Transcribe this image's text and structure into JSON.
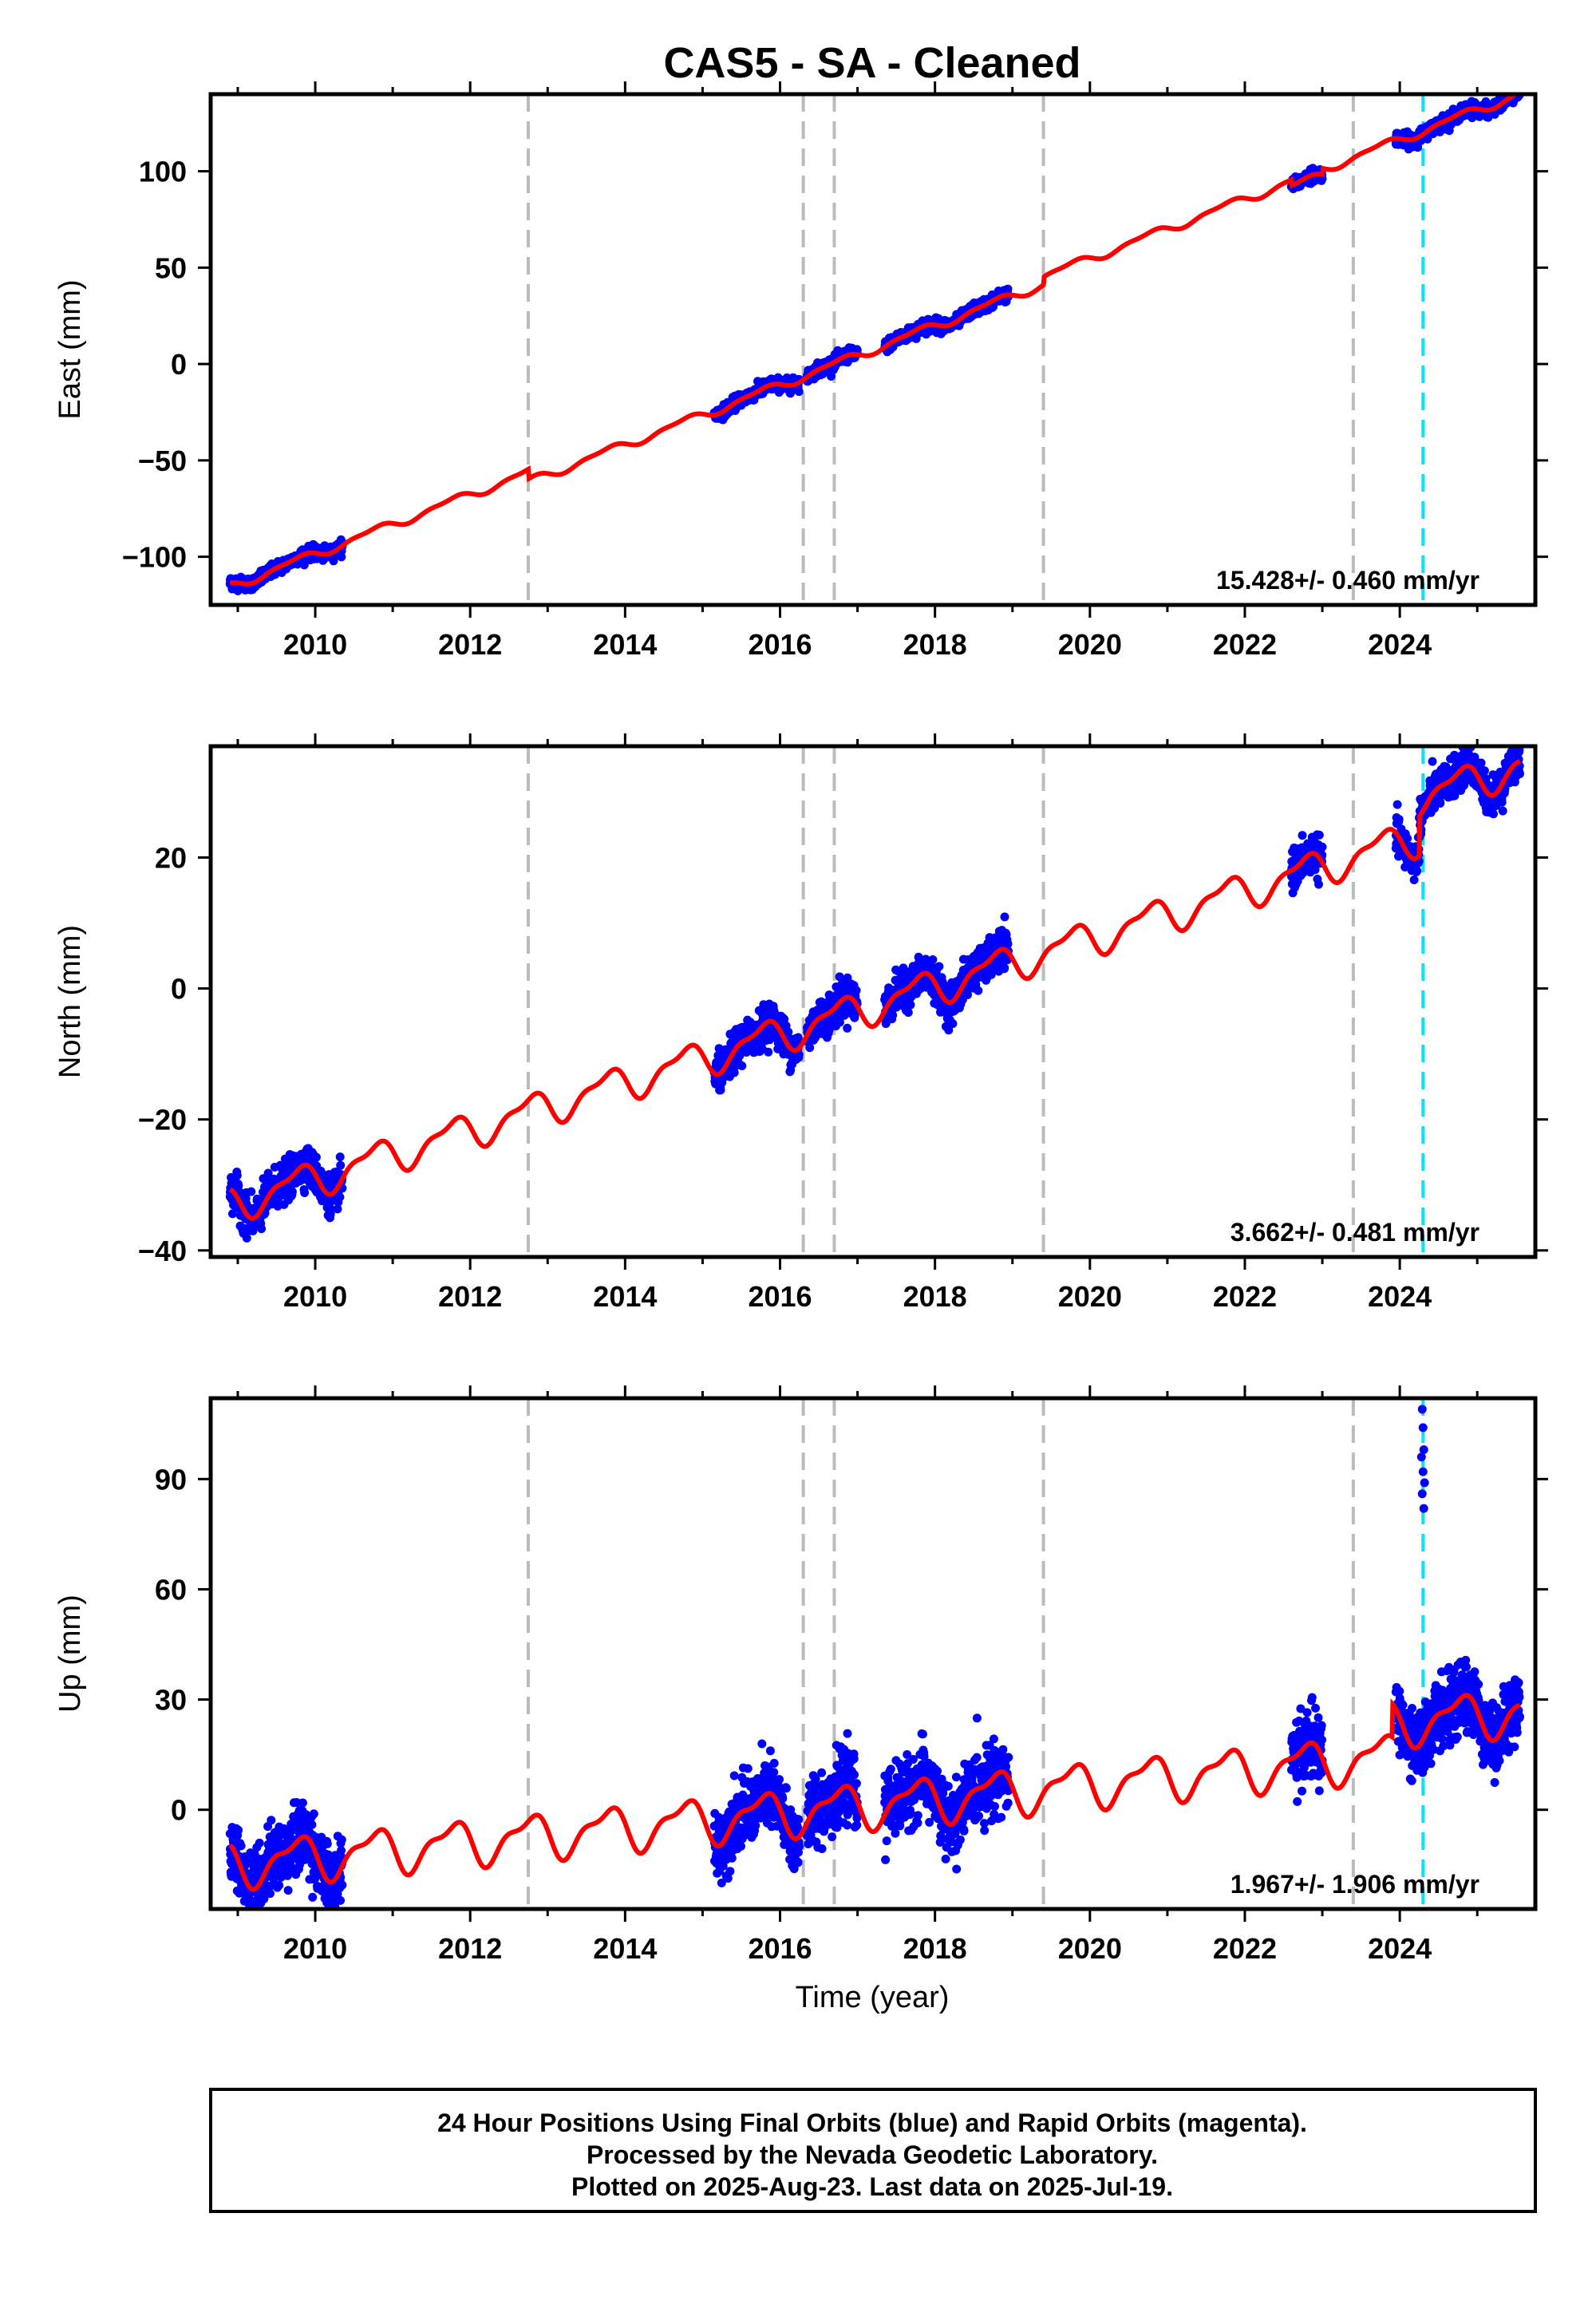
{
  "title": "CAS5  - SA - Cleaned",
  "xlabel": "Time (year)",
  "footer": {
    "line1": "24 Hour Positions Using Final Orbits (blue) and Rapid Orbits (magenta).",
    "line2": "Processed by the Nevada Geodetic Laboratory.",
    "line3": "Plotted on 2025-Aug-23. Last data on 2025-Jul-19."
  },
  "colors": {
    "data_points": "#0000ff",
    "model_fit": "#ff0000",
    "equipment_change_lines": "#bbbbbb",
    "earthquake_line": "#00e5ff"
  },
  "chart_data": [
    {
      "type": "scatter",
      "panel": "east",
      "ylabel": "East (mm)",
      "ylim": [
        -125,
        140
      ],
      "yticks": [
        -100,
        -50,
        0,
        50,
        100
      ],
      "ytick_labels": [
        "−100",
        "−50",
        "0",
        "50",
        "100"
      ],
      "xlim": [
        2008.65,
        2025.75
      ],
      "xticks": [
        2010,
        2012,
        2014,
        2016,
        2018,
        2020,
        2022,
        2024
      ],
      "xtick_labels": [
        "2010",
        "2012",
        "2014",
        "2016",
        "2018",
        "2020",
        "2022",
        "2024"
      ],
      "rate_label": "15.428+/- 0.460 mm/yr",
      "rate": 15.428,
      "intercept_2016": -6,
      "annual_amplitude": 2.0,
      "point_noise": 1.6,
      "steps": [
        {
          "x": 2012.75,
          "dy": -5
        },
        {
          "x": 2019.4,
          "dy": 4
        }
      ],
      "offsets": [
        {
          "x0": 2022.6,
          "x1": 2023.0,
          "dy": -3
        }
      ],
      "data_segments": [
        [
          2008.9,
          2010.35
        ],
        [
          2015.15,
          2016.25
        ],
        [
          2016.35,
          2017.0
        ],
        [
          2017.35,
          2018.95
        ],
        [
          2022.6,
          2023.0
        ],
        [
          2023.95,
          2025.55
        ]
      ],
      "equipment_changes": [
        2012.75,
        2016.3,
        2016.7,
        2019.4,
        2023.4
      ],
      "earthquakes": [
        2024.3
      ],
      "outliers": []
    },
    {
      "type": "scatter",
      "panel": "north",
      "ylabel": "North (mm)",
      "ylim": [
        -41,
        37
      ],
      "yticks": [
        -40,
        -20,
        0,
        20
      ],
      "ytick_labels": [
        "−40",
        "−20",
        "0",
        "20"
      ],
      "xlim": [
        2008.65,
        2025.75
      ],
      "xticks": [
        2010,
        2012,
        2014,
        2016,
        2018,
        2020,
        2022,
        2024
      ],
      "xtick_labels": [
        "2010",
        "2012",
        "2014",
        "2016",
        "2018",
        "2020",
        "2022",
        "2024"
      ],
      "rate_label": "3.662+/- 0.481 mm/yr",
      "rate": 3.662,
      "intercept_2016": -7,
      "annual_amplitude": 2.4,
      "point_noise": 1.4,
      "steps": [
        {
          "x": 2024.25,
          "dy": 6
        }
      ],
      "offsets": [],
      "data_segments": [
        [
          2008.9,
          2010.35
        ],
        [
          2015.15,
          2016.25
        ],
        [
          2016.35,
          2017.0
        ],
        [
          2017.35,
          2018.95
        ],
        [
          2022.6,
          2023.0
        ],
        [
          2023.95,
          2025.55
        ]
      ],
      "equipment_changes": [
        2012.75,
        2016.3,
        2016.7,
        2019.4,
        2023.4
      ],
      "earthquakes": [
        2024.3
      ],
      "outliers": []
    },
    {
      "type": "scatter",
      "panel": "up",
      "ylabel": "Up (mm)",
      "ylim": [
        -27,
        112
      ],
      "yticks": [
        0,
        30,
        60,
        90
      ],
      "ytick_labels": [
        "0",
        "30",
        "60",
        "90"
      ],
      "xlim": [
        2008.65,
        2025.75
      ],
      "xticks": [
        2010,
        2012,
        2014,
        2016,
        2018,
        2020,
        2022,
        2024
      ],
      "xtick_labels": [
        "2010",
        "2012",
        "2014",
        "2016",
        "2018",
        "2020",
        "2022",
        "2024"
      ],
      "rate_label": "1.967+/- 1.906 mm/yr",
      "rate": 1.967,
      "intercept_2016": -1,
      "annual_amplitude": 5.5,
      "point_noise": 4.5,
      "steps": [
        {
          "x": 2023.9,
          "dy": 9
        }
      ],
      "offsets": [],
      "data_segments": [
        [
          2008.9,
          2010.35
        ],
        [
          2015.15,
          2016.25
        ],
        [
          2016.35,
          2017.0
        ],
        [
          2017.35,
          2018.95
        ],
        [
          2022.6,
          2023.0
        ],
        [
          2023.95,
          2025.55
        ]
      ],
      "equipment_changes": [
        2012.75,
        2016.3,
        2016.7,
        2019.4,
        2023.4
      ],
      "earthquakes": [
        2024.3
      ],
      "outliers": [
        {
          "x": 2024.29,
          "y": 109
        },
        {
          "x": 2024.3,
          "y": 104
        },
        {
          "x": 2024.31,
          "y": 98
        },
        {
          "x": 2024.28,
          "y": 96
        },
        {
          "x": 2024.3,
          "y": 92
        },
        {
          "x": 2024.32,
          "y": 89
        },
        {
          "x": 2024.29,
          "y": 86
        },
        {
          "x": 2024.31,
          "y": 82
        }
      ]
    }
  ]
}
